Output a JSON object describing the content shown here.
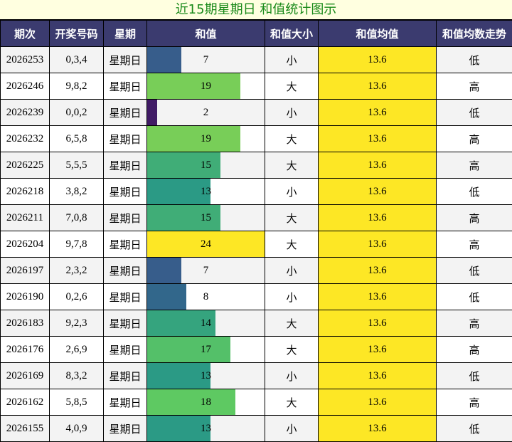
{
  "title": "近15期星期日 和值统计图示",
  "headers": [
    "期次",
    "开奖号码",
    "星期",
    "和值",
    "和值大小",
    "和值均值",
    "和值均数走势"
  ],
  "colors": {
    "header_bg": "#3b3b6f",
    "title_bg": "#ffffe0",
    "title_text": "#1a8a1a",
    "avg_bg": "#fde725"
  },
  "chart_data": {
    "type": "bar",
    "categories": [
      "2026253",
      "2026246",
      "2026239",
      "2026232",
      "2026225",
      "2026218",
      "2026211",
      "2026204",
      "2026197",
      "2026190",
      "2026183",
      "2026176",
      "2026169",
      "2026162",
      "2026155"
    ],
    "values": [
      7,
      19,
      2,
      19,
      15,
      13,
      15,
      24,
      7,
      8,
      14,
      17,
      13,
      18,
      13
    ],
    "xlim": [
      0,
      24
    ]
  },
  "rows": [
    {
      "period": "2026253",
      "numbers": "0,3,4",
      "weekday": "星期日",
      "sum": "7",
      "size": "小",
      "avg": "13.6",
      "trend": "低"
    },
    {
      "period": "2026246",
      "numbers": "9,8,2",
      "weekday": "星期日",
      "sum": "19",
      "size": "大",
      "avg": "13.6",
      "trend": "高"
    },
    {
      "period": "2026239",
      "numbers": "0,0,2",
      "weekday": "星期日",
      "sum": "2",
      "size": "小",
      "avg": "13.6",
      "trend": "低"
    },
    {
      "period": "2026232",
      "numbers": "6,5,8",
      "weekday": "星期日",
      "sum": "19",
      "size": "大",
      "avg": "13.6",
      "trend": "高"
    },
    {
      "period": "2026225",
      "numbers": "5,5,5",
      "weekday": "星期日",
      "sum": "15",
      "size": "大",
      "avg": "13.6",
      "trend": "高"
    },
    {
      "period": "2026218",
      "numbers": "3,8,2",
      "weekday": "星期日",
      "sum": "13",
      "size": "小",
      "avg": "13.6",
      "trend": "低"
    },
    {
      "period": "2026211",
      "numbers": "7,0,8",
      "weekday": "星期日",
      "sum": "15",
      "size": "大",
      "avg": "13.6",
      "trend": "高"
    },
    {
      "period": "2026204",
      "numbers": "9,7,8",
      "weekday": "星期日",
      "sum": "24",
      "size": "大",
      "avg": "13.6",
      "trend": "高"
    },
    {
      "period": "2026197",
      "numbers": "2,3,2",
      "weekday": "星期日",
      "sum": "7",
      "size": "小",
      "avg": "13.6",
      "trend": "低"
    },
    {
      "period": "2026190",
      "numbers": "0,2,6",
      "weekday": "星期日",
      "sum": "8",
      "size": "小",
      "avg": "13.6",
      "trend": "低"
    },
    {
      "period": "2026183",
      "numbers": "9,2,3",
      "weekday": "星期日",
      "sum": "14",
      "size": "大",
      "avg": "13.6",
      "trend": "高"
    },
    {
      "period": "2026176",
      "numbers": "2,6,9",
      "weekday": "星期日",
      "sum": "17",
      "size": "大",
      "avg": "13.6",
      "trend": "高"
    },
    {
      "period": "2026169",
      "numbers": "8,3,2",
      "weekday": "星期日",
      "sum": "13",
      "size": "小",
      "avg": "13.6",
      "trend": "低"
    },
    {
      "period": "2026162",
      "numbers": "5,8,5",
      "weekday": "星期日",
      "sum": "18",
      "size": "大",
      "avg": "13.6",
      "trend": "高"
    },
    {
      "period": "2026155",
      "numbers": "4,0,9",
      "weekday": "星期日",
      "sum": "13",
      "size": "小",
      "avg": "13.6",
      "trend": "低"
    }
  ]
}
